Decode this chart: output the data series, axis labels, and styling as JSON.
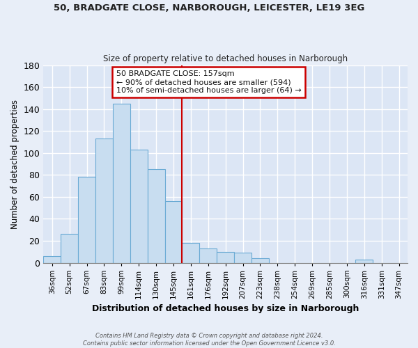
{
  "title1": "50, BRADGATE CLOSE, NARBOROUGH, LEICESTER, LE19 3EG",
  "title2": "Size of property relative to detached houses in Narborough",
  "xlabel": "Distribution of detached houses by size in Narborough",
  "ylabel": "Number of detached properties",
  "bar_labels": [
    "36sqm",
    "52sqm",
    "67sqm",
    "83sqm",
    "99sqm",
    "114sqm",
    "130sqm",
    "145sqm",
    "161sqm",
    "176sqm",
    "192sqm",
    "207sqm",
    "223sqm",
    "238sqm",
    "254sqm",
    "269sqm",
    "285sqm",
    "300sqm",
    "316sqm",
    "331sqm",
    "347sqm"
  ],
  "bar_values": [
    6,
    26,
    78,
    113,
    145,
    103,
    85,
    56,
    18,
    13,
    10,
    9,
    4,
    0,
    0,
    0,
    0,
    0,
    3,
    0,
    0
  ],
  "bar_color": "#c8ddf0",
  "bar_edge_color": "#6aaad4",
  "vline_color": "#cc0000",
  "ylim": [
    0,
    180
  ],
  "yticks": [
    0,
    20,
    40,
    60,
    80,
    100,
    120,
    140,
    160,
    180
  ],
  "annotation_title": "50 BRADGATE CLOSE: 157sqm",
  "annotation_line1": "← 90% of detached houses are smaller (594)",
  "annotation_line2": "10% of semi-detached houses are larger (64) →",
  "annotation_box_color": "#ffffff",
  "annotation_border_color": "#cc0000",
  "footer1": "Contains HM Land Registry data © Crown copyright and database right 2024.",
  "footer2": "Contains public sector information licensed under the Open Government Licence v3.0.",
  "bg_color": "#e8eef8",
  "plot_bg_color": "#dce6f5",
  "grid_color": "#ffffff"
}
